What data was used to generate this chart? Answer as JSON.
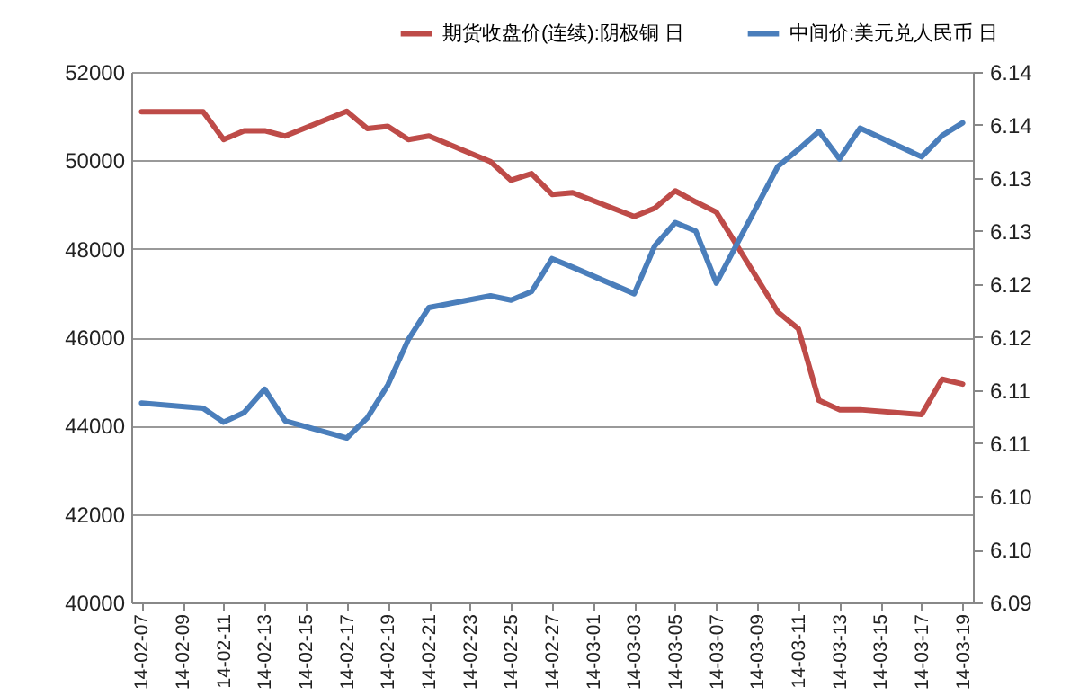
{
  "chart_data": {
    "type": "line",
    "x": [
      "--02-07",
      "--02-10",
      "--02-11",
      "--02-12",
      "--02-13",
      "--02-14",
      "--02-17",
      "--02-18",
      "--02-19",
      "--02-20",
      "--02-21",
      "--02-24",
      "--02-25",
      "--02-26",
      "--02-27",
      "--02-28",
      "--03-03",
      "--03-04",
      "--03-05",
      "--03-06",
      "--03-07",
      "--03-10",
      "--03-11",
      "--03-12",
      "--03-13",
      "--03-14",
      "--03-17",
      "--03-18",
      "--03-19"
    ],
    "series": [
      {
        "name": "期货收盘价(连续):阴极铜 日",
        "color": "#be4b48",
        "values": [
          51100,
          51100,
          50470,
          50670,
          50670,
          50550,
          51110,
          50720,
          50770,
          50470,
          50550,
          49970,
          49550,
          49700,
          49230,
          49270,
          48730,
          48920,
          49310,
          49060,
          48830,
          46570,
          46190,
          44570,
          44360,
          44360,
          44250,
          45050,
          44940
        ]
      },
      {
        "name": "中间价:美元兑人民币 日",
        "color": "#4a7ebb",
        "axis": "y2",
        "values": [
          6.1088,
          6.1083,
          6.107,
          6.1079,
          6.1101,
          6.1071,
          6.1055,
          6.1074,
          6.1105,
          6.1148,
          6.1178,
          6.1189,
          6.1185,
          6.1193,
          6.1224,
          6.1216,
          6.1191,
          6.1236,
          6.1258,
          6.125,
          6.1201,
          6.1311,
          6.1327,
          6.1344,
          6.1318,
          6.1347,
          6.132,
          6.134,
          6.1352
        ]
      }
    ],
    "xlim": [
      "--02-06T12:00",
      "--03-19T12:00"
    ],
    "xticks": [
      {
        "value": "--02-07",
        "label": "14-02-07"
      },
      {
        "value": "--02-09",
        "label": "14-02-09"
      },
      {
        "value": "--02-11",
        "label": "14-02-11"
      },
      {
        "value": "--02-13",
        "label": "14-02-13"
      },
      {
        "value": "--02-15",
        "label": "14-02-15"
      },
      {
        "value": "--02-17",
        "label": "14-02-17"
      },
      {
        "value": "--02-19",
        "label": "14-02-19"
      },
      {
        "value": "--02-21",
        "label": "14-02-21"
      },
      {
        "value": "--02-23",
        "label": "14-02-23"
      },
      {
        "value": "--02-25",
        "label": "14-02-25"
      },
      {
        "value": "--02-27",
        "label": "14-02-27"
      },
      {
        "value": "--03-01",
        "label": "14-03-01"
      },
      {
        "value": "--03-03",
        "label": "14-03-03"
      },
      {
        "value": "--03-05",
        "label": "14-03-05"
      },
      {
        "value": "--03-07",
        "label": "14-03-07"
      },
      {
        "value": "--03-09",
        "label": "14-03-09"
      },
      {
        "value": "--03-11",
        "label": "14-03-11"
      },
      {
        "value": "--03-13",
        "label": "14-03-13"
      },
      {
        "value": "--03-15",
        "label": "14-03-15"
      },
      {
        "value": "--03-17",
        "label": "14-03-17"
      },
      {
        "value": "--03-19",
        "label": "14-03-19"
      }
    ],
    "ylim": [
      40000,
      52000
    ],
    "yticks": [
      40000,
      42000,
      44000,
      46000,
      48000,
      50000,
      52000
    ],
    "y2lim": [
      6.09,
      6.14
    ],
    "y2ticks": [
      6.09,
      {
        "value": 6.095,
        "label": "6.10"
      },
      {
        "value": 6.1,
        "label": "6.10"
      },
      {
        "value": 6.105,
        "label": "6.11"
      },
      6.11,
      {
        "value": 6.115,
        "label": "6.12"
      },
      6.12,
      {
        "value": 6.125,
        "label": "6.13"
      },
      6.13,
      {
        "value": 6.135,
        "label": "6.14"
      },
      6.14
    ],
    "grid": "y",
    "legend": "top right",
    "line_style": "solid",
    "marker": "none"
  }
}
